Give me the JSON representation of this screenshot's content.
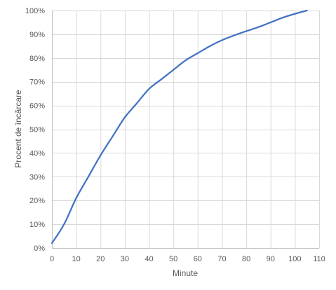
{
  "chart_data": {
    "type": "line",
    "xlabel": "Minute",
    "ylabel": "Procent de încărcare",
    "xlim": [
      0,
      110
    ],
    "ylim": [
      0,
      100
    ],
    "x_ticks": [
      0,
      10,
      20,
      30,
      40,
      50,
      60,
      70,
      80,
      90,
      100,
      110
    ],
    "x_tick_labels": [
      "0",
      "10",
      "20",
      "30",
      "40",
      "50",
      "60",
      "70",
      "80",
      "90",
      "100",
      "110"
    ],
    "y_ticks": [
      0,
      10,
      20,
      30,
      40,
      50,
      60,
      70,
      80,
      90,
      100
    ],
    "y_tick_labels": [
      "0%",
      "10%",
      "20%",
      "30%",
      "40%",
      "50%",
      "60%",
      "70%",
      "80%",
      "90%",
      "100%"
    ],
    "grid": true,
    "legend": "none",
    "series": [
      {
        "color": "#4472c4",
        "x": [
          0,
          5,
          10,
          15,
          20,
          25,
          30,
          35,
          40,
          45,
          50,
          55,
          60,
          65,
          70,
          75,
          80,
          85,
          90,
          95,
          100,
          105
        ],
        "y": [
          2,
          10,
          21,
          30,
          39,
          47,
          55,
          61,
          67,
          71,
          75,
          79,
          82,
          85,
          87.5,
          89.5,
          91.3,
          93,
          95,
          97,
          98.6,
          100
        ]
      }
    ]
  }
}
